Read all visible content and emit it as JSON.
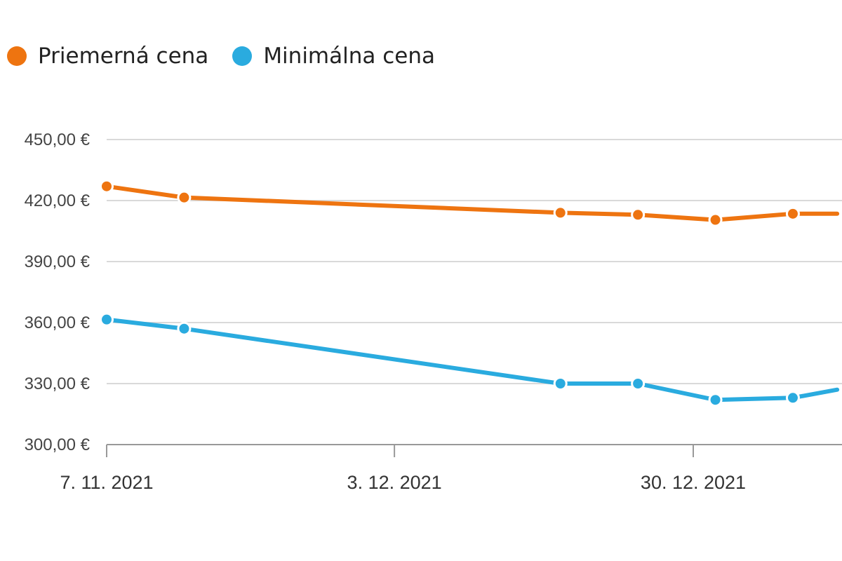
{
  "colors": {
    "average": "#ee7410",
    "minimum": "#2aabdf",
    "grid": "#d9d9d9",
    "axis": "#999999"
  },
  "chart_data": {
    "type": "line",
    "x_ticks": [
      {
        "label": "7. 11. 2021",
        "day": 0
      },
      {
        "label": "3. 12. 2021",
        "day": 26
      },
      {
        "label": "30. 12. 2021",
        "day": 53
      }
    ],
    "y_ticks": [
      "300,00 €",
      "330,00 €",
      "360,00 €",
      "390,00 €",
      "420,00 €",
      "450,00 €"
    ],
    "y_tick_values": [
      300,
      330,
      360,
      390,
      420,
      450
    ],
    "ylim": [
      300,
      450
    ],
    "grid": true,
    "legend_position": "top-left",
    "series": [
      {
        "name": "Priemerná cena",
        "color_key": "average",
        "points": [
          {
            "x": "7. 11. 2021",
            "y": 427
          },
          {
            "x": "14. 11. 2021",
            "y": 421.5
          },
          {
            "x": "18. 12. 2021",
            "y": 414
          },
          {
            "x": "25. 12. 2021",
            "y": 413
          },
          {
            "x": "1. 1. 2022",
            "y": 410.5
          },
          {
            "x": "8. 1. 2022",
            "y": 413.5
          },
          {
            "x": "12. 1. 2022",
            "y": 413.5
          }
        ]
      },
      {
        "name": "Minimálna cena",
        "color_key": "minimum",
        "points": [
          {
            "x": "7. 11. 2021",
            "y": 361.5
          },
          {
            "x": "14. 11. 2021",
            "y": 357
          },
          {
            "x": "18. 12. 2021",
            "y": 330
          },
          {
            "x": "25. 12. 2021",
            "y": 330
          },
          {
            "x": "1. 1. 2022",
            "y": 322
          },
          {
            "x": "8. 1. 2022",
            "y": 323
          },
          {
            "x": "12. 1. 2022",
            "y": 327
          }
        ]
      }
    ]
  }
}
